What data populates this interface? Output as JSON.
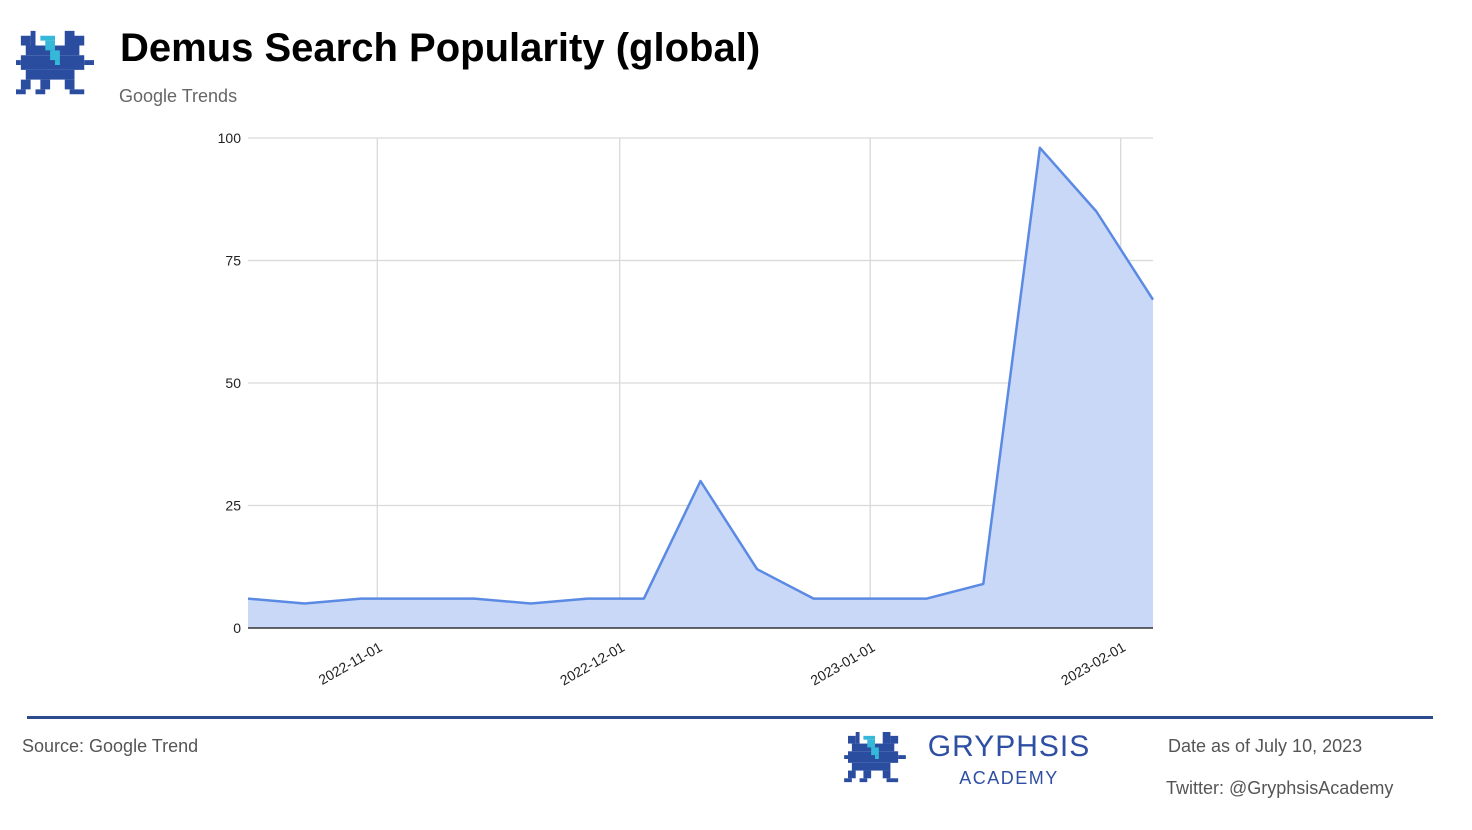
{
  "header": {
    "title": "Demus Search Popularity (global)",
    "subtitle": "Google Trends"
  },
  "footer": {
    "source": "Source: Google Trend",
    "brand_name": "GRYPHSIS",
    "brand_sub": "ACADEMY",
    "date": "Date as of July 10, 2023",
    "twitter": "Twitter: @GryphsisAcademy"
  },
  "icons": {
    "top_logo": "gryphon-pixel-logo-icon",
    "bottom_logo": "gryphon-pixel-logo-icon"
  },
  "colors": {
    "line": "#5b8ae4",
    "fill": "#c9d8f7",
    "brand": "#2e4fa3",
    "logo_dark": "#2b4da0",
    "logo_accent": "#36b8d8"
  },
  "chart_data": {
    "type": "area",
    "title": "",
    "xlabel": "",
    "ylabel": "",
    "x": [
      "2022-10-16",
      "2022-10-23",
      "2022-10-30",
      "2022-11-06",
      "2022-11-13",
      "2022-11-20",
      "2022-11-27",
      "2022-12-04",
      "2022-12-11",
      "2022-12-18",
      "2022-12-25",
      "2023-01-01",
      "2023-01-08",
      "2023-01-15",
      "2023-01-22",
      "2023-01-29",
      "2023-02-05"
    ],
    "series": [
      {
        "values": [
          6,
          5,
          6,
          6,
          6,
          5,
          6,
          6,
          30,
          12,
          6,
          6,
          6,
          9,
          98,
          85,
          67
        ]
      }
    ],
    "x_ticks": [
      "2022-11-01",
      "2022-12-01",
      "2023-01-01",
      "2023-02-01"
    ],
    "y_ticks": [
      0,
      25,
      50,
      75,
      100
    ],
    "ylim": [
      0,
      100
    ],
    "grid": true,
    "legend": "none"
  }
}
